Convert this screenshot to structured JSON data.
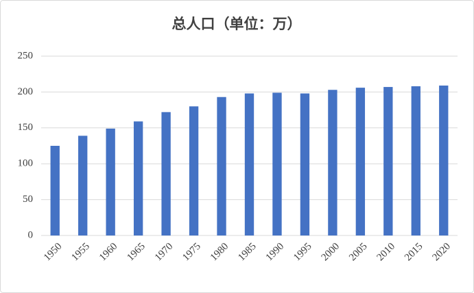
{
  "chart_data": {
    "type": "bar",
    "title": "总人口（单位：万）",
    "categories": [
      "1950",
      "1955",
      "1960",
      "1965",
      "1970",
      "1975",
      "1980",
      "1985",
      "1990",
      "1995",
      "2000",
      "2005",
      "2010",
      "2015",
      "2020"
    ],
    "values": [
      125,
      139,
      149,
      159,
      172,
      180,
      193,
      198,
      199,
      198,
      203,
      206,
      207,
      208,
      209
    ],
    "color": "#4472c4",
    "ylim": [
      0,
      250
    ],
    "yticks": [
      0,
      50,
      100,
      150,
      200,
      250
    ],
    "grid": true
  }
}
